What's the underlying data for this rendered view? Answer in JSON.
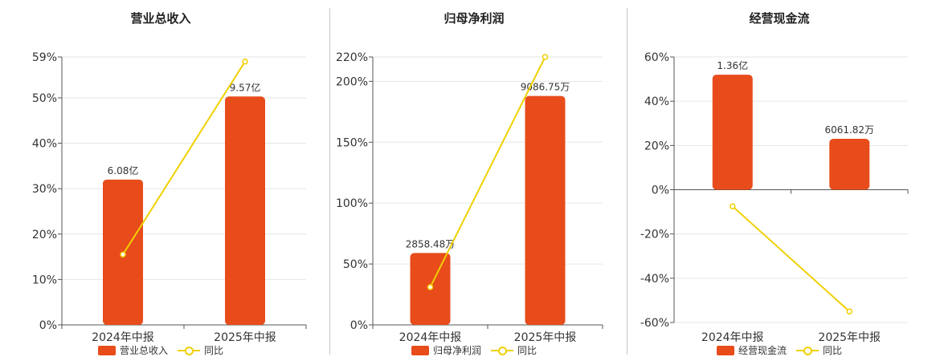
{
  "colors": {
    "bar": "#e84c1b",
    "line": "#f0d000",
    "grid": "#e6e6e6",
    "axis": "#555555",
    "text": "#333333"
  },
  "chart_data": [
    {
      "type": "bar",
      "title": "营业总收入",
      "categories": [
        "2024年中报",
        "2025年中报"
      ],
      "series": [
        {
          "name": "营业总收入",
          "type": "bar",
          "values": [
            32,
            50.3
          ],
          "labels": [
            "6.08亿",
            "9.57亿"
          ]
        },
        {
          "name": "同比",
          "type": "line",
          "values": [
            15.5,
            58
          ]
        }
      ],
      "ylim": [
        0,
        59
      ],
      "yticks": [
        0,
        10,
        20,
        30,
        40,
        50,
        59
      ],
      "ytick_labels": [
        "0%",
        "10%",
        "20%",
        "30%",
        "40%",
        "50%",
        "59%"
      ],
      "grid": true,
      "legend_position": "bottom"
    },
    {
      "type": "bar",
      "title": "归母净利润",
      "categories": [
        "2024年中报",
        "2025年中报"
      ],
      "series": [
        {
          "name": "归母净利润",
          "type": "bar",
          "values": [
            59,
            188
          ],
          "labels": [
            "2858.48万",
            "9086.75万"
          ]
        },
        {
          "name": "同比",
          "type": "line",
          "values": [
            31,
            220
          ]
        }
      ],
      "ylim": [
        0,
        220
      ],
      "yticks": [
        0,
        50,
        100,
        150,
        200,
        220
      ],
      "ytick_labels": [
        "0%",
        "50%",
        "100%",
        "150%",
        "200%",
        "220%"
      ],
      "grid": true,
      "legend_position": "bottom"
    },
    {
      "type": "bar",
      "title": "经营现金流",
      "categories": [
        "2024年中报",
        "2025年中报"
      ],
      "series": [
        {
          "name": "经营现金流",
          "type": "bar",
          "values": [
            52,
            23
          ],
          "labels": [
            "1.36亿",
            "6061.82万"
          ]
        },
        {
          "name": "同比",
          "type": "line",
          "values": [
            -7.5,
            -55
          ]
        }
      ],
      "ylim": [
        -60,
        60
      ],
      "yticks": [
        -60,
        -40,
        -20,
        0,
        20,
        40,
        60
      ],
      "ytick_labels": [
        "-60%",
        "-40%",
        "-20%",
        "0%",
        "20%",
        "40%",
        "60%"
      ],
      "grid": true,
      "legend_position": "bottom"
    }
  ]
}
